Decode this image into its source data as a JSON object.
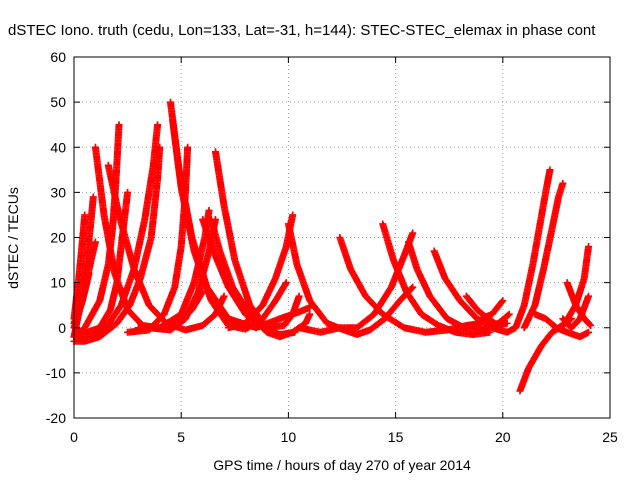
{
  "chart_data": {
    "type": "scatter",
    "title": "dSTEC Iono. truth (cedu, Lon=133, Lat=-31, h=144): STEC-STEC_elemax in phase cont",
    "xlabel": "GPS time / hours of day 270 of year 2014",
    "ylabel": "dSTEC  / TECUs",
    "xlim": [
      0,
      25
    ],
    "ylim": [
      -20,
      60
    ],
    "xticks": [
      0,
      5,
      10,
      15,
      20,
      25
    ],
    "yticks": [
      -20,
      -10,
      0,
      10,
      20,
      30,
      40,
      50,
      60
    ],
    "grid": true,
    "marker": "+",
    "colors": {
      "series": "#ff0000",
      "grid": "#a0a0a0",
      "axis": "#000000"
    },
    "series": [
      {
        "points": [
          [
            0.0,
            -2
          ],
          [
            0.3,
            5
          ],
          [
            0.6,
            15
          ],
          [
            0.8,
            24
          ],
          [
            0.9,
            29
          ]
        ]
      },
      {
        "points": [
          [
            0.0,
            2
          ],
          [
            0.2,
            10
          ],
          [
            0.35,
            17
          ],
          [
            0.5,
            25
          ]
        ]
      },
      {
        "points": [
          [
            0.0,
            0
          ],
          [
            0.4,
            6
          ],
          [
            0.8,
            15
          ],
          [
            1.0,
            19
          ]
        ]
      },
      {
        "points": [
          [
            0.0,
            1
          ],
          [
            0.25,
            4
          ],
          [
            0.5,
            8
          ],
          [
            0.7,
            12
          ]
        ]
      },
      {
        "points": [
          [
            1.0,
            40
          ],
          [
            1.4,
            25
          ],
          [
            1.9,
            12
          ],
          [
            2.5,
            4
          ],
          [
            3.2,
            0.5
          ],
          [
            4.0,
            0
          ],
          [
            4.8,
            1
          ],
          [
            5.5,
            4
          ],
          [
            6.0,
            8
          ]
        ]
      },
      {
        "points": [
          [
            0.1,
            -0.5
          ],
          [
            0.6,
            -1
          ],
          [
            1.2,
            0
          ],
          [
            1.7,
            4
          ],
          [
            2.0,
            10
          ],
          [
            2.3,
            22
          ],
          [
            2.5,
            30
          ]
        ]
      },
      {
        "points": [
          [
            0.0,
            -3
          ],
          [
            0.5,
            -3
          ],
          [
            1.2,
            -2
          ],
          [
            2.0,
            1
          ],
          [
            2.6,
            5
          ],
          [
            3.1,
            11
          ],
          [
            3.6,
            20
          ],
          [
            3.9,
            33
          ],
          [
            4.0,
            40
          ]
        ]
      },
      {
        "points": [
          [
            0.0,
            -2
          ],
          [
            0.8,
            -2
          ],
          [
            1.5,
            0
          ],
          [
            2.2,
            5
          ],
          [
            2.8,
            13
          ],
          [
            3.3,
            24
          ],
          [
            3.7,
            36
          ],
          [
            3.9,
            45
          ]
        ]
      },
      {
        "points": [
          [
            0.5,
            0
          ],
          [
            1.2,
            6
          ],
          [
            1.6,
            14
          ],
          [
            1.8,
            22
          ],
          [
            1.95,
            32
          ],
          [
            2.1,
            45
          ]
        ]
      },
      {
        "points": [
          [
            1.6,
            36
          ],
          [
            2.1,
            25
          ],
          [
            2.8,
            13
          ],
          [
            3.5,
            5
          ],
          [
            4.3,
            1
          ],
          [
            5.2,
            -0.5
          ],
          [
            6.0,
            0.5
          ],
          [
            6.6,
            3
          ],
          [
            7.0,
            7
          ]
        ]
      },
      {
        "points": [
          [
            4.5,
            50
          ],
          [
            4.9,
            35
          ],
          [
            5.5,
            20
          ],
          [
            6.2,
            9
          ],
          [
            7.2,
            2
          ],
          [
            8.5,
            0
          ],
          [
            9.6,
            2
          ],
          [
            10.5,
            3.5
          ],
          [
            11.0,
            4.5
          ]
        ]
      },
      {
        "points": [
          [
            2.5,
            -1
          ],
          [
            3.5,
            -0.5
          ],
          [
            4.2,
            3
          ],
          [
            4.7,
            9
          ],
          [
            5.0,
            18
          ],
          [
            5.2,
            30
          ],
          [
            5.3,
            40
          ]
        ]
      },
      {
        "points": [
          [
            4.6,
            46
          ],
          [
            5.0,
            31
          ],
          [
            5.6,
            17
          ],
          [
            6.4,
            6
          ],
          [
            7.2,
            0.5
          ],
          [
            8.0,
            -0.3
          ],
          [
            8.8,
            2
          ],
          [
            9.4,
            6
          ],
          [
            9.9,
            10
          ]
        ]
      },
      {
        "points": [
          [
            3.0,
            0
          ],
          [
            4.0,
            0
          ],
          [
            5.0,
            3
          ],
          [
            5.6,
            10
          ],
          [
            6.1,
            20
          ],
          [
            6.3,
            26
          ]
        ]
      },
      {
        "points": [
          [
            3.5,
            0
          ],
          [
            4.5,
            -0.5
          ],
          [
            5.2,
            2
          ],
          [
            5.8,
            8
          ],
          [
            6.3,
            17
          ],
          [
            6.6,
            24
          ]
        ]
      },
      {
        "points": [
          [
            6.6,
            39
          ],
          [
            7.0,
            27
          ],
          [
            7.5,
            15
          ],
          [
            8.2,
            5
          ],
          [
            9.0,
            0
          ],
          [
            9.8,
            0.5
          ],
          [
            10.2,
            3
          ],
          [
            10.5,
            7
          ]
        ]
      },
      {
        "points": [
          [
            6.4,
            24
          ],
          [
            6.8,
            17
          ],
          [
            7.4,
            9
          ],
          [
            8.2,
            3
          ],
          [
            9.0,
            -1
          ],
          [
            9.6,
            -2
          ],
          [
            10.2,
            -1
          ],
          [
            10.8,
            1
          ],
          [
            11.0,
            3
          ]
        ]
      },
      {
        "points": [
          [
            6.0,
            24
          ],
          [
            6.5,
            17
          ],
          [
            7.2,
            9
          ],
          [
            8.0,
            3
          ],
          [
            8.8,
            0
          ],
          [
            9.6,
            -1.5
          ],
          [
            10.3,
            -1
          ]
        ]
      },
      {
        "points": [
          [
            7.2,
            0
          ],
          [
            8.0,
            1
          ],
          [
            8.8,
            5
          ],
          [
            9.4,
            11
          ],
          [
            9.9,
            18
          ],
          [
            10.2,
            25
          ]
        ]
      },
      {
        "points": [
          [
            10.0,
            23
          ],
          [
            10.4,
            14
          ],
          [
            11.0,
            6
          ],
          [
            11.8,
            1
          ],
          [
            12.6,
            -0.5
          ],
          [
            13.2,
            -1.5
          ],
          [
            13.8,
            -0.5
          ],
          [
            14.5,
            2
          ],
          [
            15.2,
            6
          ],
          [
            15.8,
            9
          ]
        ]
      },
      {
        "points": [
          [
            12.4,
            20
          ],
          [
            12.9,
            13
          ],
          [
            13.6,
            7
          ],
          [
            14.4,
            3
          ],
          [
            15.4,
            0
          ],
          [
            16.4,
            -1
          ],
          [
            17.4,
            -0.5
          ],
          [
            18.3,
            0.5
          ],
          [
            19.0,
            1
          ]
        ]
      },
      {
        "points": [
          [
            10.5,
            0
          ],
          [
            11.5,
            -1
          ],
          [
            12.4,
            0
          ],
          [
            13.2,
            0
          ],
          [
            14.0,
            3
          ],
          [
            14.8,
            9
          ],
          [
            15.4,
            16
          ],
          [
            15.8,
            21
          ]
        ]
      },
      {
        "points": [
          [
            14.4,
            23
          ],
          [
            14.9,
            15
          ],
          [
            15.5,
            8
          ],
          [
            16.2,
            3
          ],
          [
            17.0,
            0.5
          ],
          [
            17.8,
            -1
          ],
          [
            18.6,
            -1.5
          ],
          [
            19.4,
            -1
          ]
        ]
      },
      {
        "points": [
          [
            15.6,
            19
          ],
          [
            16.0,
            13
          ],
          [
            16.6,
            7
          ],
          [
            17.4,
            2
          ],
          [
            18.2,
            0
          ],
          [
            19.0,
            -0.5
          ],
          [
            19.8,
            1
          ],
          [
            20.3,
            3
          ]
        ]
      },
      {
        "points": [
          [
            16.8,
            17
          ],
          [
            17.3,
            11
          ],
          [
            18.0,
            6
          ],
          [
            18.8,
            2
          ],
          [
            19.5,
            0
          ],
          [
            20.2,
            -1
          ],
          [
            20.6,
            0
          ]
        ]
      },
      {
        "points": [
          [
            18.3,
            7
          ],
          [
            18.8,
            4
          ],
          [
            19.3,
            2
          ],
          [
            19.8,
            0.5
          ],
          [
            20.2,
            1
          ]
        ]
      },
      {
        "points": [
          [
            19.0,
            2
          ],
          [
            19.5,
            3
          ],
          [
            20.0,
            6
          ]
        ]
      },
      {
        "points": [
          [
            20.6,
            0
          ],
          [
            21.0,
            5
          ],
          [
            21.4,
            14
          ],
          [
            21.7,
            22
          ],
          [
            22.0,
            30
          ],
          [
            22.2,
            35
          ]
        ]
      },
      {
        "points": [
          [
            21.0,
            0
          ],
          [
            21.5,
            5
          ],
          [
            21.9,
            13
          ],
          [
            22.3,
            22
          ],
          [
            22.6,
            29
          ],
          [
            22.8,
            32
          ]
        ]
      },
      {
        "points": [
          [
            20.8,
            -14
          ],
          [
            21.2,
            -9
          ],
          [
            21.8,
            -4
          ],
          [
            22.3,
            -1
          ],
          [
            22.8,
            0.5
          ],
          [
            23.2,
            2
          ]
        ]
      },
      {
        "points": [
          [
            21.5,
            3
          ],
          [
            22.0,
            2
          ],
          [
            22.5,
            0
          ],
          [
            23.0,
            -1
          ],
          [
            23.6,
            -2
          ],
          [
            24.0,
            -1
          ]
        ]
      },
      {
        "points": [
          [
            22.3,
            -1
          ],
          [
            22.9,
            1
          ],
          [
            23.4,
            5
          ],
          [
            23.8,
            11
          ],
          [
            24.0,
            18
          ]
        ]
      },
      {
        "points": [
          [
            23.0,
            10
          ],
          [
            23.4,
            5
          ],
          [
            23.8,
            2
          ],
          [
            24.1,
            0.5
          ]
        ]
      },
      {
        "points": [
          [
            22.8,
            2
          ],
          [
            23.2,
            0
          ],
          [
            23.6,
            2
          ],
          [
            24.0,
            7
          ]
        ]
      }
    ]
  }
}
